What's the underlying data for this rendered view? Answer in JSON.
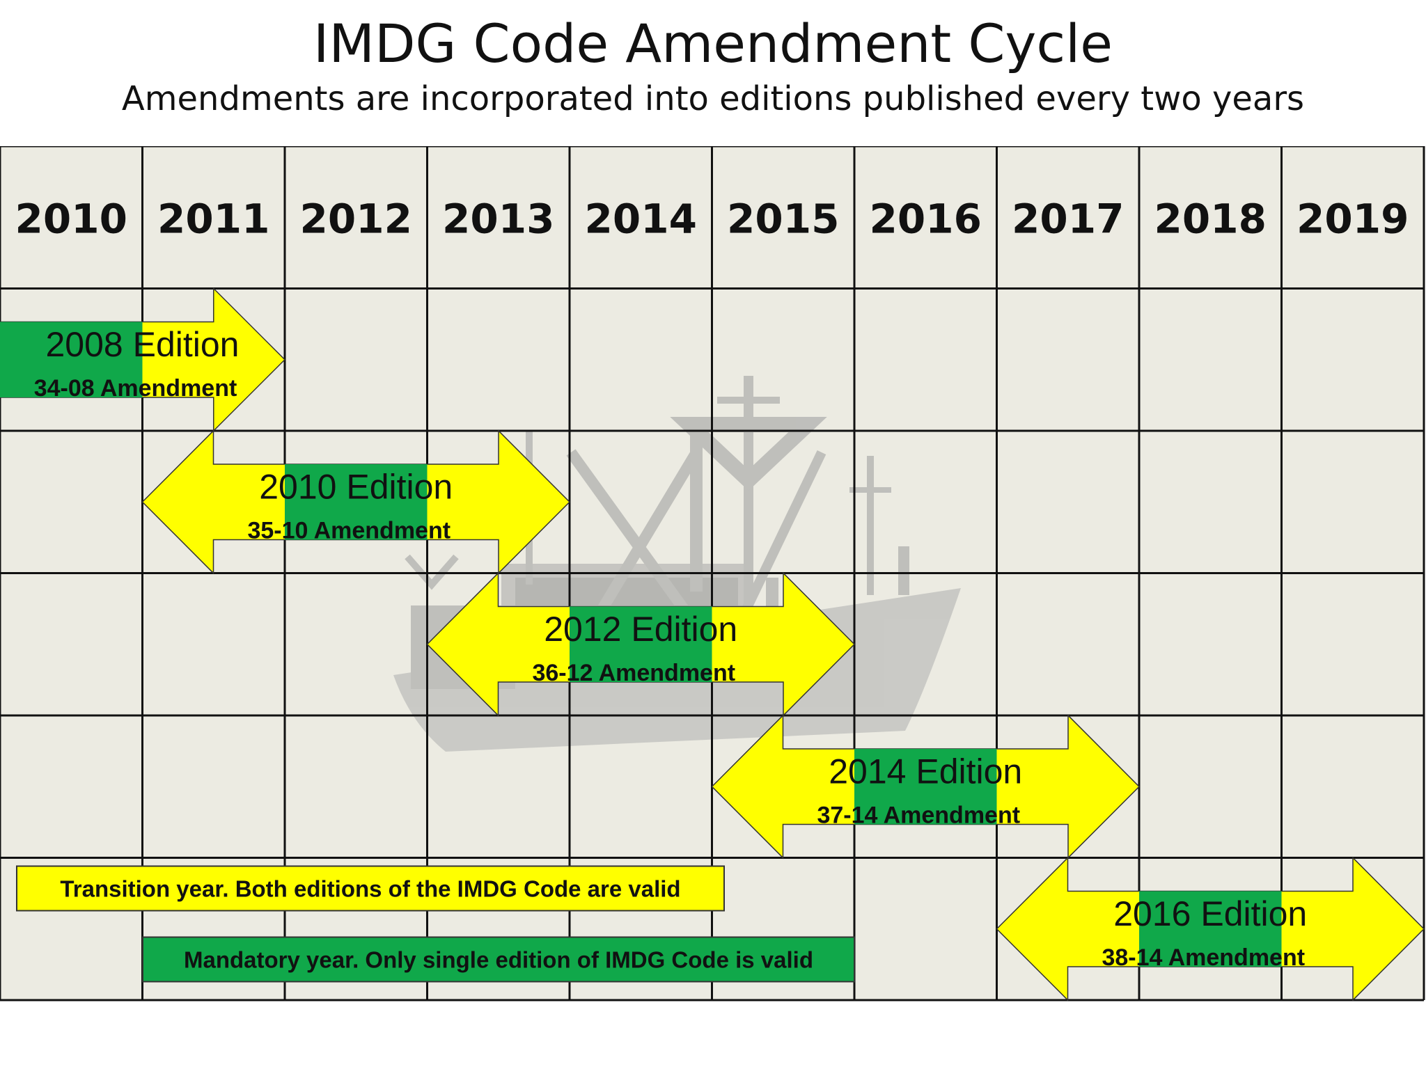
{
  "title": "IMDG Code Amendment Cycle",
  "subtitle": "Amendments are incorporated into editions published every two years",
  "years": [
    "2010",
    "2011",
    "2012",
    "2013",
    "2014",
    "2015",
    "2016",
    "2017",
    "2018",
    "2019"
  ],
  "editions": [
    {
      "title": "2008 Edition",
      "amendment": "34-08 Amendment",
      "row": 1,
      "start_year": 2010,
      "transition_year": 2010,
      "mandatory_years": [],
      "arrow_left": false
    },
    {
      "title": "2010 Edition",
      "amendment": "35-10 Amendment",
      "row": 2,
      "start_year": 2011,
      "transition_year": 2011,
      "mandatory_years": [
        2012
      ],
      "arrow_left": true
    },
    {
      "title": "2012 Edition",
      "amendment": "36-12 Amendment",
      "row": 3,
      "start_year": 2013,
      "transition_year": 2013,
      "mandatory_years": [
        2014
      ],
      "arrow_left": true
    },
    {
      "title": "2014 Edition",
      "amendment": "37-14 Amendment",
      "row": 4,
      "start_year": 2015,
      "transition_year": 2015,
      "mandatory_years": [
        2016
      ],
      "arrow_left": true
    },
    {
      "title": "2016 Edition",
      "amendment": "38-14 Amendment",
      "row": 5,
      "start_year": 2017,
      "transition_year": 2017,
      "mandatory_years": [
        2018
      ],
      "arrow_left": true
    }
  ],
  "legend": {
    "transition": "Transition year.  Both editions of the IMDG Code are valid",
    "mandatory": "Mandatory year.  Only single edition of IMDG Code is valid"
  },
  "colors": {
    "transition": "#ffff00",
    "mandatory": "#10a84a",
    "grid_bg": "#ecebe2",
    "grid_line": "#111111",
    "ship": "#c4c4c0"
  }
}
